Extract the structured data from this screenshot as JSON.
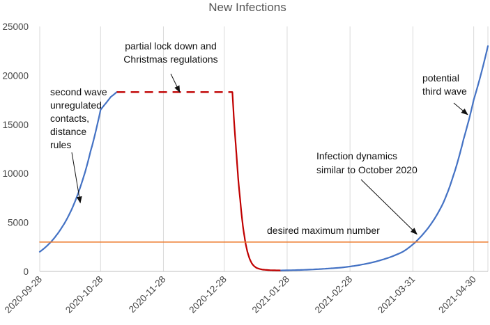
{
  "chart_data": {
    "type": "line",
    "title": "New Infections",
    "xlabel": "",
    "ylabel": "",
    "ylim": [
      0,
      25000
    ],
    "yticks": [
      0,
      5000,
      10000,
      15000,
      20000,
      25000
    ],
    "xlim": [
      "2020-09-28",
      "2021-05-07"
    ],
    "xticks": [
      "2020-09-28",
      "2020-10-28",
      "2020-11-28",
      "2020-12-28",
      "2021-01-28",
      "2021-02-28",
      "2021-03-31",
      "2021-04-30"
    ],
    "grid": "vertical",
    "legend": "none",
    "series": [
      {
        "style": "solid",
        "color": "#4472C4",
        "x": [
          "2020-09-28",
          "2020-10-03",
          "2020-10-08",
          "2020-10-13",
          "2020-10-18",
          "2020-10-23",
          "2020-10-28",
          "2020-11-02",
          "2020-11-05"
        ],
        "y": [
          2000,
          2900,
          4200,
          6000,
          8600,
          12200,
          16500,
          17800,
          18300
        ]
      },
      {
        "style": "dashed",
        "color": "#C00000",
        "x": [
          "2020-11-05",
          "2021-01-01"
        ],
        "y": [
          18300,
          18300
        ]
      },
      {
        "style": "solid",
        "color": "#C00000",
        "x": [
          "2021-01-01",
          "2021-01-03",
          "2021-01-05",
          "2021-01-07",
          "2021-01-09",
          "2021-01-11",
          "2021-01-13",
          "2021-01-16",
          "2021-01-20",
          "2021-01-25"
        ],
        "y": [
          18300,
          12000,
          7000,
          3500,
          1600,
          700,
          350,
          180,
          120,
          100
        ]
      },
      {
        "style": "solid",
        "color": "#4472C4",
        "x": [
          "2021-01-25",
          "2021-02-04",
          "2021-02-14",
          "2021-02-24",
          "2021-03-06",
          "2021-03-16",
          "2021-03-26",
          "2021-04-05",
          "2021-04-15",
          "2021-04-20",
          "2021-04-25",
          "2021-04-30",
          "2021-05-07"
        ],
        "y": [
          100,
          150,
          250,
          400,
          700,
          1200,
          2000,
          3800,
          7000,
          9800,
          13500,
          17500,
          23000
        ]
      },
      {
        "style": "solid",
        "color": "#ED7D31",
        "x": [
          "2020-09-28",
          "2021-05-07"
        ],
        "y": [
          3000,
          3000
        ]
      }
    ],
    "annotations": [
      {
        "lines": [
          "second wave",
          "unregulated",
          "contacts,",
          "distance",
          "rules"
        ],
        "target": {
          "x": "2020-10-18",
          "y": 7000
        }
      },
      {
        "lines": [
          "partial lock down and",
          "Christmas regulations"
        ],
        "target": {
          "x": "2020-12-06",
          "y": 18300
        }
      },
      {
        "lines": [
          "potential",
          "third wave"
        ],
        "target": {
          "x": "2021-04-27",
          "y": 16000
        }
      },
      {
        "lines": [
          "Infection dynamics",
          "similar to October 2020"
        ],
        "target": {
          "x": "2021-04-02",
          "y": 3800
        }
      },
      {
        "lines": [
          "desired maximum  number"
        ]
      }
    ]
  }
}
